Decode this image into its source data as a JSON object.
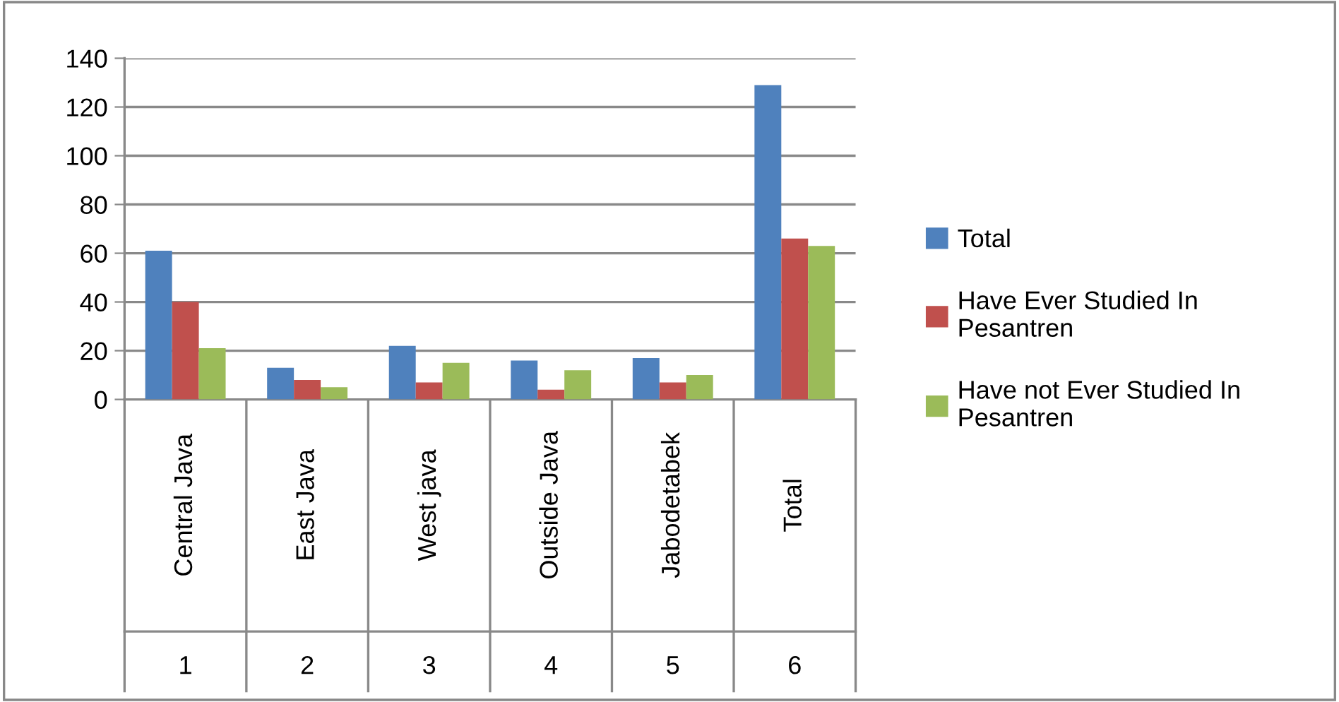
{
  "chart_data": {
    "type": "bar",
    "categories": [
      "Central Java",
      "East Java",
      "West java",
      "Outside Java",
      "Jabodetabek",
      "Total"
    ],
    "annotations": [
      "1",
      "2",
      "3",
      "4",
      "5",
      "6"
    ],
    "series": [
      {
        "name": "Total",
        "color": "#4f81bd",
        "values": [
          61,
          13,
          22,
          16,
          17,
          129
        ]
      },
      {
        "name": "Have Ever Studied In\nPesantren",
        "color": "#c0504d",
        "values": [
          40,
          8,
          7,
          4,
          7,
          66
        ]
      },
      {
        "name": "Have not Ever Studied In\nPesantren",
        "color": "#9bbb59",
        "values": [
          21,
          5,
          15,
          12,
          10,
          63
        ]
      }
    ],
    "ylim": [
      0,
      140
    ],
    "yticks": [
      0,
      20,
      40,
      60,
      80,
      100,
      120,
      140
    ],
    "grid": "y",
    "legend": "right"
  }
}
